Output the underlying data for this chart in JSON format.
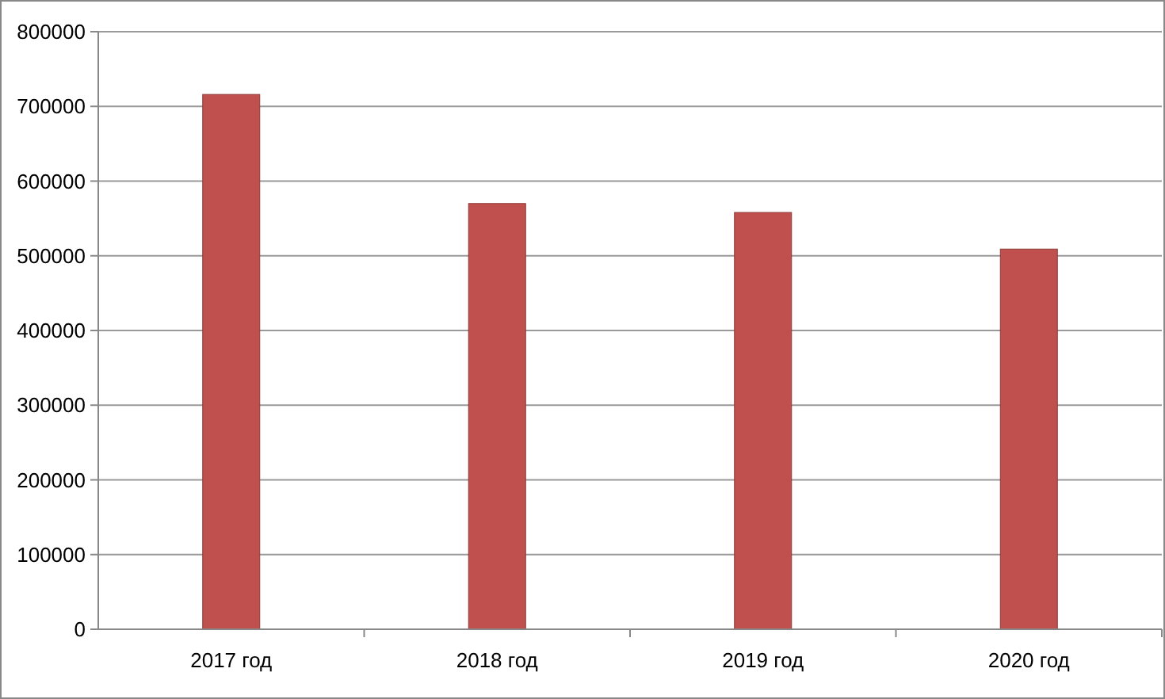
{
  "chart_data": {
    "type": "bar",
    "categories": [
      "2017 год",
      "2018 год",
      "2019 год",
      "2020 год"
    ],
    "values": [
      716000,
      570000,
      558000,
      509000
    ],
    "color": "#c0504d",
    "ylim": [
      0,
      800000
    ],
    "yticks": [
      0,
      100000,
      200000,
      300000,
      400000,
      500000,
      600000,
      700000,
      800000
    ],
    "grid": "y"
  }
}
